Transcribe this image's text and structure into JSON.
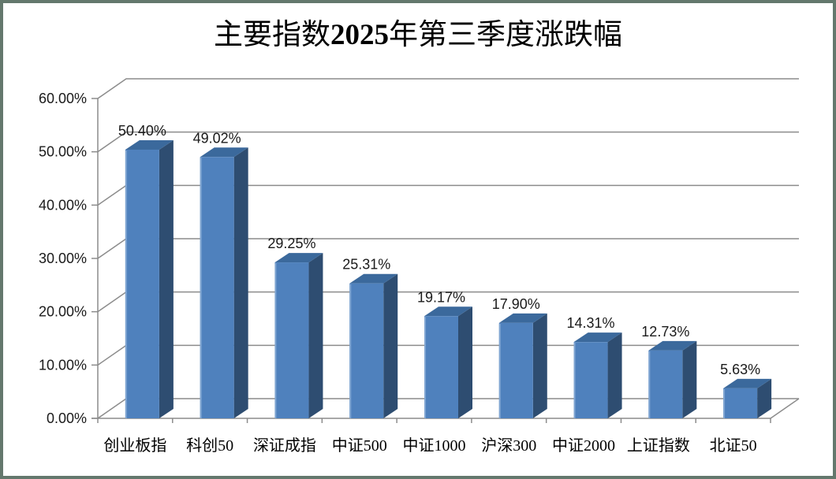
{
  "window": {
    "border_color": "#64786D",
    "background_color": "#FFFFFF"
  },
  "chart_data": {
    "type": "bar",
    "style": "3d-column",
    "title": "主要指数2025年第三季度涨跌幅",
    "xlabel": "",
    "ylabel": "",
    "legend": "none",
    "grid": true,
    "categories": [
      "创业板指",
      "科创50",
      "深证成指",
      "中证500",
      "中证1000",
      "沪深300",
      "中证2000",
      "上证指数",
      "北证50"
    ],
    "values": [
      50.4,
      49.02,
      29.25,
      25.31,
      19.17,
      17.9,
      14.31,
      12.73,
      5.63
    ],
    "data_labels": [
      "50.40%",
      "49.02%",
      "29.25%",
      "25.31%",
      "19.17%",
      "17.90%",
      "14.31%",
      "12.73%",
      "5.63%"
    ],
    "y_ticks": [
      "0.00%",
      "10.00%",
      "20.00%",
      "30.00%",
      "40.00%",
      "50.00%",
      "60.00%"
    ],
    "y_tick_values": [
      0,
      10,
      20,
      30,
      40,
      50,
      60
    ],
    "ylim": [
      0,
      60
    ],
    "colors": {
      "bar_front": "#4F81BD",
      "bar_top": "#3B699C",
      "bar_side": "#2E4D71",
      "bar_left_highlight": "#7FA5D2",
      "gridline": "#8C8C8C",
      "axis": "#8C8C8C",
      "label_text": "#1A1A1A",
      "title_text": "#000000"
    }
  }
}
